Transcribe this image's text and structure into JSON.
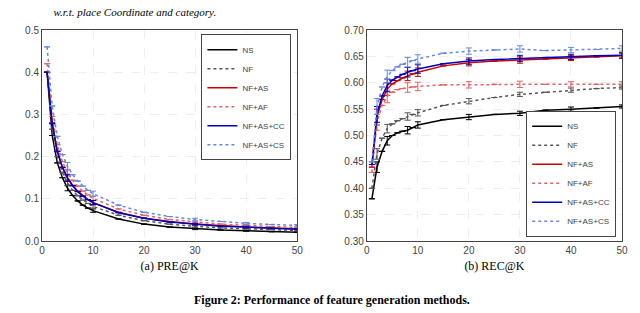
{
  "title": "w.r.t. place Coordinate and category.",
  "annotations": [
    "Figure 2: Performance of feature generation methods."
  ],
  "chart_data": [
    {
      "type": "line",
      "xlabel": "(a) PRE@K",
      "x": [
        1,
        2,
        3,
        4,
        5,
        6,
        7,
        8,
        9,
        10,
        15,
        20,
        25,
        30,
        35,
        40,
        45,
        50
      ],
      "xlim": [
        0,
        50
      ],
      "xticks": [
        0,
        10,
        20,
        30,
        40,
        50
      ],
      "ylim": [
        0.0,
        0.5
      ],
      "yticks": [
        {
          "value": 0.0,
          "label": "0.0"
        },
        0.1,
        0.2,
        0.3,
        0.4,
        0.5
      ],
      "grid": true,
      "legend": "upper right",
      "series": [
        {
          "name": "NS",
          "color": "#000000",
          "line_style": "solid",
          "values": [
            0.4,
            0.25,
            0.185,
            0.15,
            0.125,
            0.108,
            0.095,
            0.085,
            0.078,
            0.072,
            0.052,
            0.04,
            0.033,
            0.029,
            0.026,
            0.024,
            0.022,
            0.021
          ],
          "errors": [
            null,
            null,
            null,
            null,
            0.006,
            null,
            null,
            null,
            null,
            0.004,
            null,
            null,
            null,
            0.002,
            null,
            0.001,
            null,
            0.001
          ]
        },
        {
          "name": "NF",
          "color": "#555555",
          "line_style": "dotted",
          "values": [
            0.4,
            0.265,
            0.2,
            0.163,
            0.138,
            0.12,
            0.107,
            0.097,
            0.089,
            0.082,
            0.061,
            0.048,
            0.04,
            0.035,
            0.031,
            0.029,
            0.027,
            0.025
          ],
          "errors": [
            null,
            null,
            null,
            null,
            0.006,
            null,
            null,
            null,
            null,
            0.004,
            null,
            null,
            null,
            0.002,
            null,
            0.001,
            null,
            0.001
          ]
        },
        {
          "name": "NF+AS",
          "color": "#cc0000",
          "line_style": "solid",
          "values": [
            0.4,
            0.28,
            0.213,
            0.175,
            0.15,
            0.132,
            0.118,
            0.107,
            0.098,
            0.091,
            0.068,
            0.054,
            0.046,
            0.04,
            0.036,
            0.033,
            0.031,
            0.029
          ],
          "errors": [
            null,
            null,
            null,
            null,
            0.008,
            null,
            null,
            null,
            null,
            0.005,
            null,
            null,
            null,
            0.002,
            null,
            0.002,
            null,
            0.001
          ]
        },
        {
          "name": "NF+AF",
          "color": "#dd6666",
          "line_style": "dotted",
          "values": [
            0.42,
            0.295,
            0.228,
            0.188,
            0.162,
            0.144,
            0.13,
            0.118,
            0.109,
            0.101,
            0.076,
            0.061,
            0.051,
            0.045,
            0.04,
            0.037,
            0.034,
            0.032
          ],
          "errors": [
            null,
            null,
            null,
            null,
            0.008,
            null,
            null,
            null,
            null,
            0.005,
            null,
            null,
            null,
            0.002,
            null,
            0.002,
            null,
            0.001
          ]
        },
        {
          "name": "NF+AS+CC",
          "color": "#0000bb",
          "line_style": "solid",
          "values": [
            0.4,
            0.278,
            0.212,
            0.174,
            0.149,
            0.131,
            0.117,
            0.106,
            0.098,
            0.091,
            0.067,
            0.054,
            0.045,
            0.04,
            0.035,
            0.033,
            0.03,
            0.028
          ],
          "errors": [
            null,
            null,
            null,
            null,
            0.008,
            null,
            null,
            null,
            null,
            0.005,
            null,
            null,
            null,
            0.002,
            null,
            0.002,
            null,
            0.001
          ]
        },
        {
          "name": "NF+AS+CS",
          "color": "#6688dd",
          "line_style": "dotted",
          "values": [
            0.46,
            0.32,
            0.248,
            0.205,
            0.177,
            0.157,
            0.142,
            0.13,
            0.12,
            0.112,
            0.085,
            0.068,
            0.058,
            0.051,
            0.046,
            0.042,
            0.039,
            0.037
          ],
          "errors": [
            null,
            null,
            null,
            null,
            0.009,
            null,
            null,
            null,
            null,
            0.006,
            null,
            null,
            null,
            0.003,
            null,
            0.002,
            null,
            0.002
          ]
        }
      ]
    },
    {
      "type": "line",
      "xlabel": "(b) REC@K",
      "x": [
        1,
        2,
        3,
        4,
        5,
        6,
        7,
        8,
        9,
        10,
        15,
        20,
        25,
        30,
        35,
        40,
        45,
        50
      ],
      "xlim": [
        0,
        50
      ],
      "xticks": [
        0,
        10,
        20,
        30,
        40,
        50
      ],
      "ylim": [
        0.3,
        0.7
      ],
      "yticks": [
        {
          "value": 0.3,
          "label": "0.30"
        },
        0.35,
        {
          "value": 0.4,
          "label": "0.40"
        },
        0.45,
        {
          "value": 0.5,
          "label": "0.50"
        },
        0.55,
        {
          "value": 0.6,
          "label": "0.60"
        },
        0.65,
        {
          "value": 0.7,
          "label": "0.70"
        }
      ],
      "grid": true,
      "legend": "lower right",
      "series": [
        {
          "name": "NS",
          "color": "#000000",
          "line_style": "solid",
          "values": [
            0.38,
            0.44,
            0.47,
            0.49,
            0.5,
            0.505,
            0.508,
            0.51,
            0.515,
            0.52,
            0.53,
            0.535,
            0.54,
            0.542,
            0.548,
            0.55,
            0.552,
            0.555
          ],
          "errors": [
            null,
            0.01,
            null,
            0.008,
            null,
            null,
            null,
            0.007,
            null,
            0.006,
            null,
            0.005,
            null,
            0.004,
            null,
            0.004,
            null,
            0.003
          ]
        },
        {
          "name": "NF",
          "color": "#555555",
          "line_style": "dotted",
          "values": [
            0.4,
            0.465,
            0.495,
            0.513,
            0.522,
            0.528,
            0.532,
            0.536,
            0.54,
            0.543,
            0.557,
            0.565,
            0.572,
            0.578,
            0.582,
            0.586,
            0.589,
            0.591
          ],
          "errors": [
            null,
            0.01,
            null,
            0.008,
            null,
            null,
            null,
            0.007,
            null,
            0.006,
            null,
            0.005,
            null,
            0.004,
            null,
            0.004,
            null,
            0.003
          ]
        },
        {
          "name": "NF+AS",
          "color": "#cc0000",
          "line_style": "solid",
          "values": [
            0.44,
            0.535,
            0.568,
            0.588,
            0.598,
            0.604,
            0.609,
            0.613,
            0.617,
            0.62,
            0.632,
            0.638,
            0.641,
            0.643,
            0.645,
            0.647,
            0.649,
            0.651
          ],
          "errors": [
            null,
            0.015,
            null,
            0.012,
            null,
            null,
            null,
            0.009,
            null,
            0.008,
            null,
            0.006,
            null,
            0.006,
            null,
            0.005,
            null,
            0.005
          ]
        },
        {
          "name": "NF+AF",
          "color": "#dd6666",
          "line_style": "dotted",
          "values": [
            0.43,
            0.525,
            0.557,
            0.574,
            0.582,
            0.587,
            0.589,
            0.591,
            0.592,
            0.593,
            0.596,
            0.596,
            0.597,
            0.597,
            0.597,
            0.597,
            0.597,
            0.597
          ],
          "errors": [
            null,
            0.015,
            null,
            0.012,
            null,
            null,
            null,
            0.009,
            null,
            0.008,
            null,
            0.006,
            null,
            0.006,
            null,
            0.005,
            null,
            0.005
          ]
        },
        {
          "name": "NF+AS+CC",
          "color": "#0000bb",
          "line_style": "solid",
          "values": [
            0.445,
            0.54,
            0.575,
            0.595,
            0.605,
            0.611,
            0.616,
            0.62,
            0.623,
            0.626,
            0.636,
            0.641,
            0.644,
            0.646,
            0.648,
            0.649,
            0.651,
            0.652
          ],
          "errors": [
            null,
            0.015,
            null,
            0.012,
            null,
            null,
            null,
            0.009,
            null,
            0.008,
            null,
            0.006,
            null,
            0.006,
            null,
            0.005,
            null,
            0.005
          ]
        },
        {
          "name": "NF+AS+CS",
          "color": "#6688dd",
          "line_style": "dotted",
          "values": [
            0.45,
            0.555,
            0.592,
            0.612,
            0.623,
            0.63,
            0.635,
            0.639,
            0.642,
            0.645,
            0.656,
            0.66,
            0.662,
            0.664,
            0.661,
            0.662,
            0.663,
            0.665
          ],
          "errors": [
            null,
            0.015,
            null,
            0.012,
            null,
            null,
            null,
            0.009,
            null,
            0.008,
            null,
            0.006,
            null,
            0.006,
            null,
            0.005,
            null,
            0.005
          ]
        }
      ]
    }
  ]
}
